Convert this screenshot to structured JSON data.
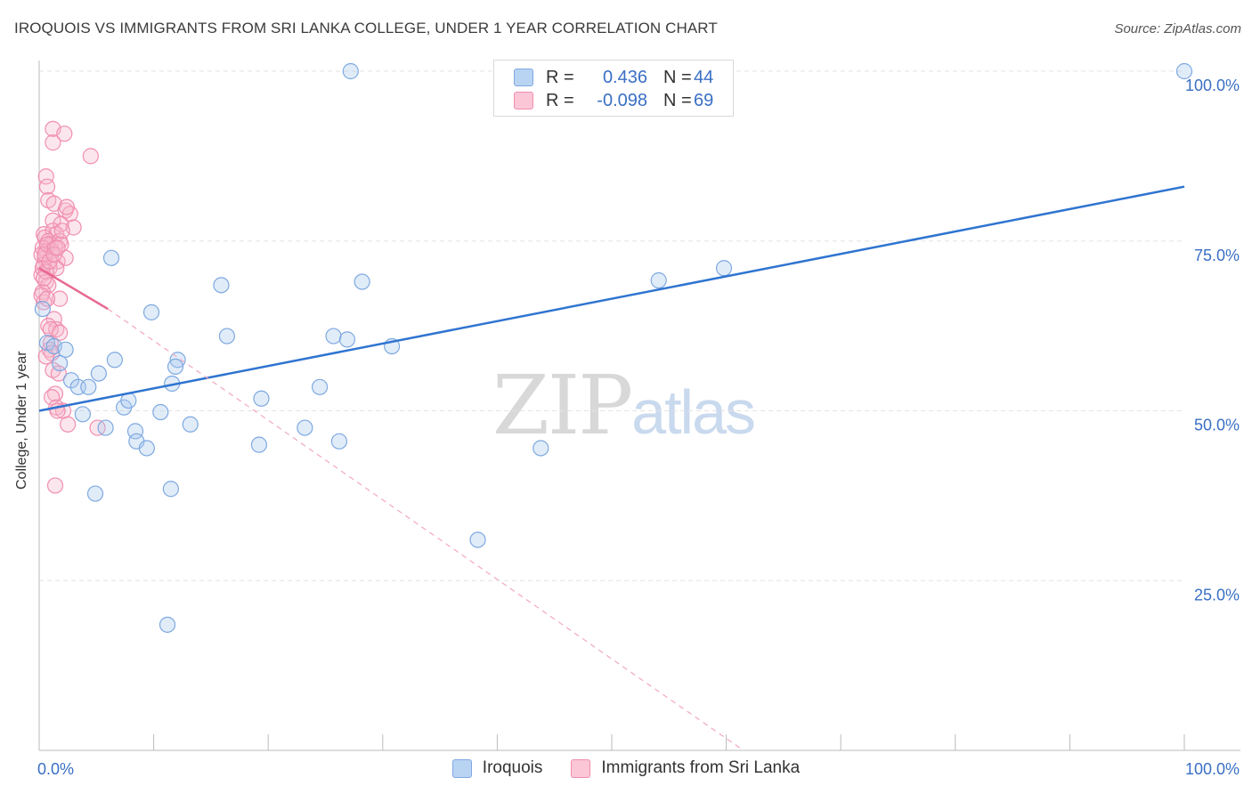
{
  "title": "IROQUOIS VS IMMIGRANTS FROM SRI LANKA COLLEGE, UNDER 1 YEAR CORRELATION CHART",
  "source": "Source: ZipAtlas.com",
  "watermark": {
    "zip": "ZIP",
    "atlas": "atlas"
  },
  "legend": {
    "series1": {
      "r_label": "R =",
      "r_value": "0.436",
      "n_label": "N =",
      "n_value": "44"
    },
    "series2": {
      "r_label": "R =",
      "r_value": "-0.098",
      "n_label": "N =",
      "n_value": "69"
    }
  },
  "chart_data": {
    "type": "scatter",
    "title": "IROQUOIS VS IMMIGRANTS FROM SRI LANKA COLLEGE, UNDER 1 YEAR CORRELATION CHART",
    "xlabel": "",
    "ylabel": "College, Under 1 year",
    "xlim": [
      0,
      100
    ],
    "ylim": [
      0,
      100
    ],
    "x_tick_labels": [
      "0.0%",
      "100.0%"
    ],
    "y_ticks": [
      25,
      50,
      75,
      100
    ],
    "y_tick_labels": [
      "25.0%",
      "50.0%",
      "75.0%",
      "100.0%"
    ],
    "colors": {
      "iroquois": "#a9c8ee",
      "iroquois_line": "#2f74d0",
      "srilanka": "#f6b6cb",
      "srilanka_line": "#e8688f"
    },
    "series": [
      {
        "name": "Iroquois",
        "trend": {
          "x0": 0,
          "y0": 50.0,
          "x1": 100,
          "y1": 83.0
        },
        "points": [
          [
            0.3,
            65
          ],
          [
            0.7,
            60
          ],
          [
            1.3,
            59.5
          ],
          [
            2.3,
            59
          ],
          [
            1.8,
            57
          ],
          [
            2.8,
            54.5
          ],
          [
            3.4,
            53.5
          ],
          [
            4.3,
            53.5
          ],
          [
            3.8,
            49.5
          ],
          [
            5.2,
            55.5
          ],
          [
            5.8,
            47.5
          ],
          [
            6.3,
            72.5
          ],
          [
            6.6,
            57.5
          ],
          [
            7.4,
            50.5
          ],
          [
            7.8,
            51.5
          ],
          [
            8.4,
            47
          ],
          [
            8.5,
            45.5
          ],
          [
            9.4,
            44.5
          ],
          [
            9.8,
            64.5
          ],
          [
            10.6,
            49.8
          ],
          [
            11.6,
            54
          ],
          [
            12.1,
            57.5
          ],
          [
            11.9,
            56.5
          ],
          [
            13.2,
            48
          ],
          [
            11.5,
            38.5
          ],
          [
            4.9,
            37.8
          ],
          [
            11.2,
            18.5
          ],
          [
            15.9,
            68.5
          ],
          [
            16.4,
            61
          ],
          [
            19.2,
            45
          ],
          [
            19.4,
            51.8
          ],
          [
            23.2,
            47.5
          ],
          [
            24.5,
            53.5
          ],
          [
            25.7,
            61
          ],
          [
            26.2,
            45.5
          ],
          [
            26.9,
            60.5
          ],
          [
            28.2,
            69
          ],
          [
            30.8,
            59.5
          ],
          [
            27.2,
            100
          ],
          [
            38.3,
            31
          ],
          [
            43.8,
            44.5
          ],
          [
            54.1,
            69.2
          ],
          [
            59.8,
            71
          ],
          [
            100,
            100
          ]
        ]
      },
      {
        "name": "Immigrants from Sri Lanka",
        "trend": {
          "x0": 0,
          "y0": 71.0,
          "x1": 6.0,
          "y1": 65.0
        },
        "trend_extended": {
          "x0": 6.0,
          "y0": 65.0,
          "x1": 61.5,
          "y1": 0
        },
        "points": [
          [
            1.2,
            91.5
          ],
          [
            1.2,
            89.5
          ],
          [
            2.2,
            90.8
          ],
          [
            4.5,
            87.5
          ],
          [
            0.6,
            84.5
          ],
          [
            0.7,
            83
          ],
          [
            0.8,
            81
          ],
          [
            1.3,
            80.5
          ],
          [
            1.2,
            78
          ],
          [
            2.3,
            79.5
          ],
          [
            2.7,
            79
          ],
          [
            3.0,
            77
          ],
          [
            1.9,
            77.5
          ],
          [
            0.4,
            76
          ],
          [
            1.2,
            76.5
          ],
          [
            1.5,
            76
          ],
          [
            0.5,
            75.5
          ],
          [
            0.8,
            75
          ],
          [
            1.0,
            74.5
          ],
          [
            1.8,
            75
          ],
          [
            1.9,
            74.5
          ],
          [
            0.3,
            74
          ],
          [
            0.6,
            73.5
          ],
          [
            1.1,
            73.5
          ],
          [
            0.5,
            72.5
          ],
          [
            1.6,
            72
          ],
          [
            2.3,
            72.5
          ],
          [
            0.4,
            71.5
          ],
          [
            0.9,
            71
          ],
          [
            1.5,
            71
          ],
          [
            0.2,
            70
          ],
          [
            0.6,
            69
          ],
          [
            0.8,
            68.5
          ],
          [
            0.3,
            67.5
          ],
          [
            1.8,
            66.5
          ],
          [
            0.4,
            66
          ],
          [
            1.3,
            63.5
          ],
          [
            0.8,
            62.5
          ],
          [
            1.5,
            62
          ],
          [
            1.0,
            60
          ],
          [
            0.9,
            59
          ],
          [
            1.1,
            58.5
          ],
          [
            1.2,
            56
          ],
          [
            1.7,
            55.5
          ],
          [
            1.4,
            52.5
          ],
          [
            1.1,
            52
          ],
          [
            1.5,
            50.5
          ],
          [
            2.1,
            50
          ],
          [
            1.6,
            50
          ],
          [
            2.5,
            48
          ],
          [
            5.1,
            47.5
          ],
          [
            1.4,
            39
          ],
          [
            0.2,
            73
          ],
          [
            0.5,
            73
          ],
          [
            0.7,
            74.5
          ],
          [
            1.4,
            74
          ],
          [
            0.3,
            71
          ],
          [
            0.6,
            70.5
          ],
          [
            0.9,
            72
          ],
          [
            1.3,
            73
          ],
          [
            1.6,
            74
          ],
          [
            0.4,
            69.5
          ],
          [
            0.2,
            67
          ],
          [
            0.7,
            66.5
          ],
          [
            1.0,
            62
          ],
          [
            1.8,
            61.5
          ],
          [
            0.6,
            58
          ],
          [
            2.0,
            76.5
          ],
          [
            2.4,
            80
          ]
        ]
      }
    ]
  },
  "bottom_legend": [
    "Iroquois",
    "Immigrants from Sri Lanka"
  ]
}
